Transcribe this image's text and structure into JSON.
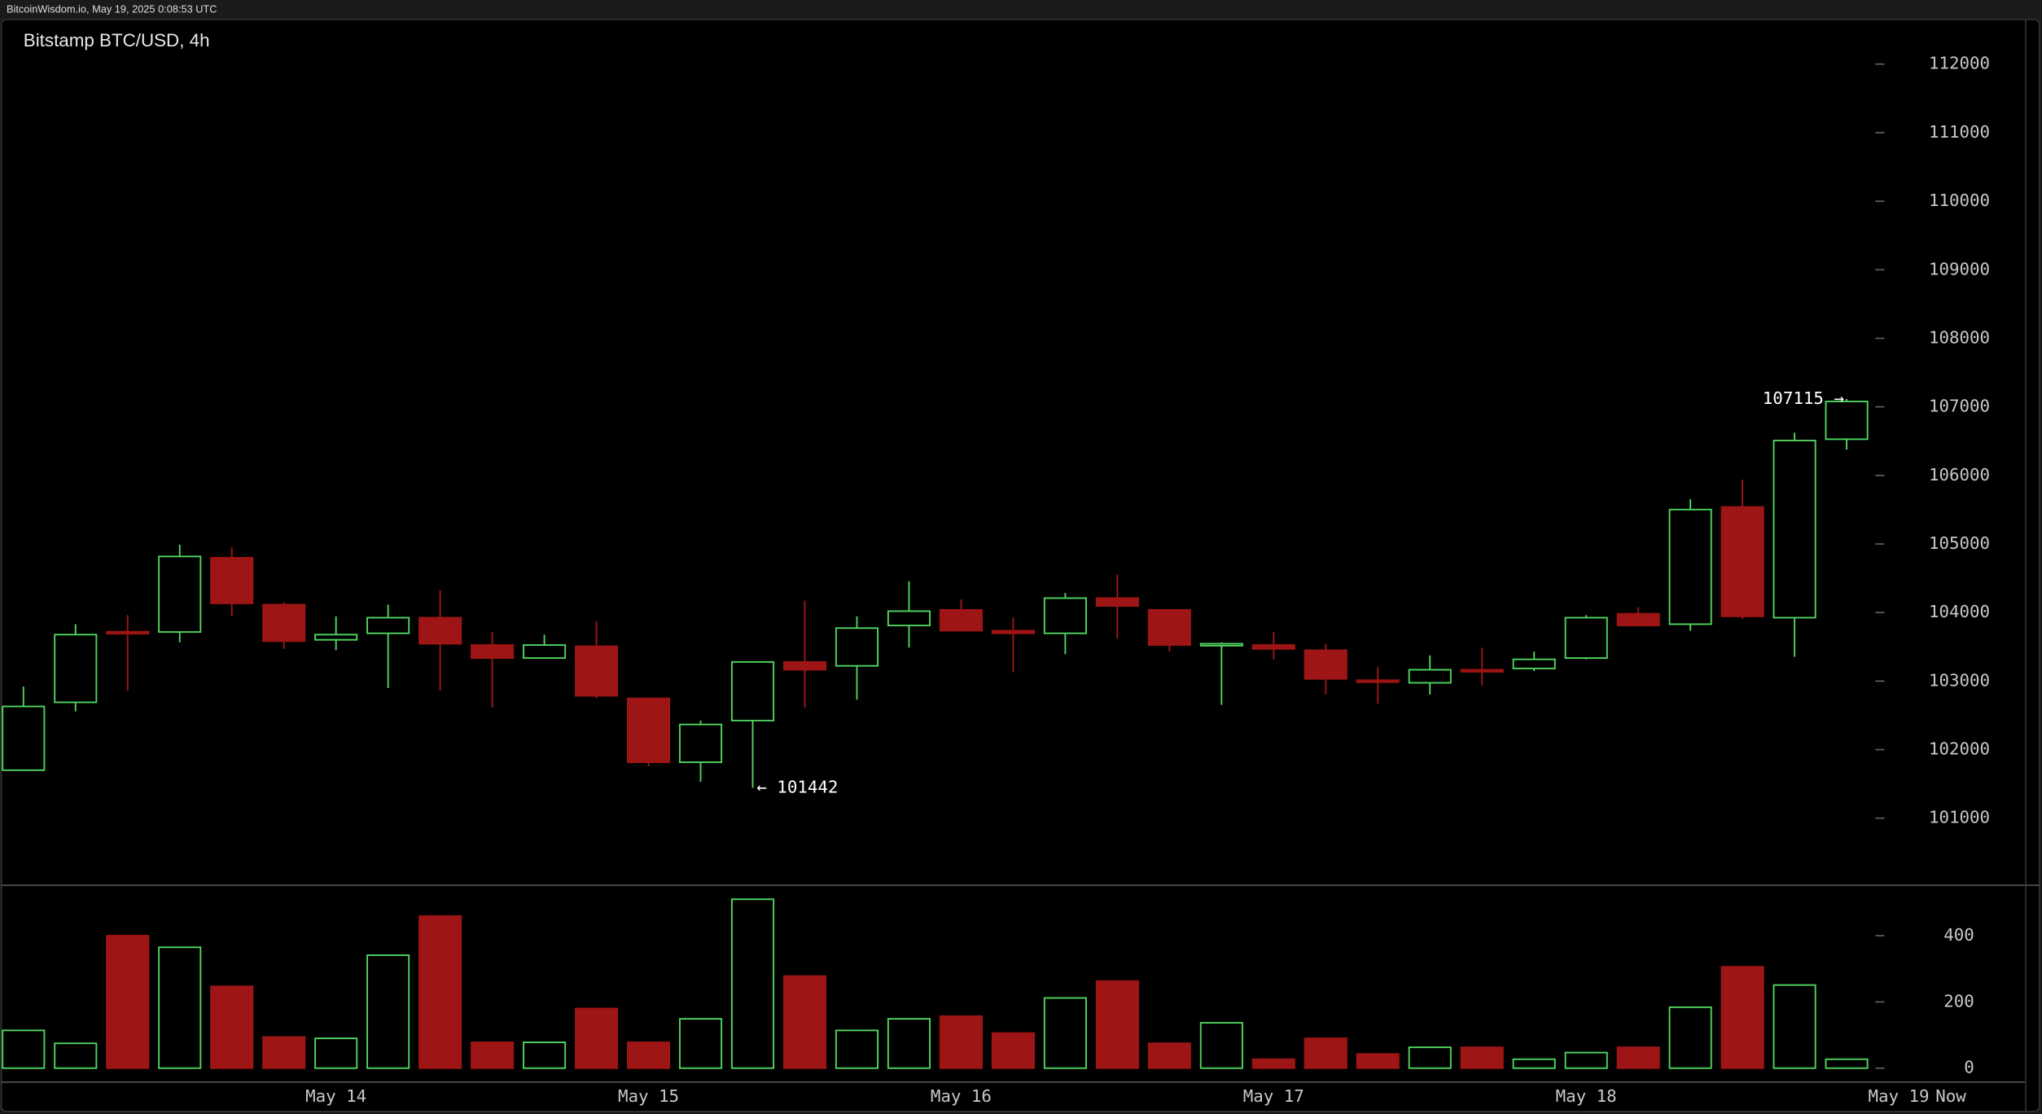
{
  "chart_data": {
    "type": "candlestick",
    "source": "BitcoinWisdom.io, May 19, 2025 0:08:53 UTC",
    "title": "Bitstamp BTC/USD, 4h",
    "categories": [
      null,
      null,
      null,
      null,
      null,
      null,
      "May 14",
      null,
      null,
      null,
      null,
      null,
      "May 15",
      null,
      null,
      null,
      null,
      null,
      "May 16",
      null,
      null,
      null,
      null,
      null,
      "May 17",
      null,
      null,
      null,
      null,
      null,
      "May 18",
      null,
      null,
      null,
      null,
      null,
      "May 19",
      "Now"
    ],
    "open": [
      101700,
      102690,
      103720,
      103716,
      104799,
      104115,
      103602,
      103697,
      103925,
      103526,
      103336,
      103507,
      102747,
      101816,
      102424,
      103279,
      103222,
      103811,
      104039,
      103735,
      103697,
      104210,
      104039,
      103526,
      103526,
      103450,
      103013,
      102975,
      103165,
      103184,
      103336,
      103982,
      103830,
      105540,
      103925,
      106528,
      null,
      null
    ],
    "high": [
      102920,
      103830,
      103963,
      104989,
      104951,
      104150,
      103944,
      104115,
      104324,
      103716,
      103678,
      103868,
      102747,
      102424,
      103279,
      104172,
      103944,
      104457,
      104191,
      103925,
      104286,
      104552,
      104039,
      103564,
      103716,
      103545,
      103203,
      103374,
      103488,
      103431,
      103963,
      104077,
      105654,
      105939,
      106623,
      107115,
      null,
      null
    ],
    "low": [
      101700,
      102557,
      102861,
      103564,
      103944,
      103469,
      103450,
      102899,
      102861,
      102614,
      103336,
      102747,
      101759,
      101531,
      101442,
      102614,
      102728,
      103488,
      103735,
      103127,
      103393,
      103621,
      103431,
      102652,
      103317,
      102804,
      102671,
      102804,
      102937,
      103146,
      103317,
      103811,
      103735,
      103906,
      103355,
      106376,
      null,
      null
    ],
    "close": [
      102630,
      103678,
      103700,
      104818,
      104134,
      103583,
      103678,
      103925,
      103545,
      103336,
      103526,
      102785,
      101816,
      102367,
      103279,
      103165,
      103773,
      104020,
      103735,
      103697,
      104210,
      104096,
      103526,
      103545,
      103469,
      103032,
      102994,
      103165,
      103146,
      103317,
      103925,
      103811,
      105502,
      103944,
      106509,
      107079,
      null,
      null
    ],
    "volume": [
      114,
      75,
      400,
      365,
      247,
      94,
      90,
      341,
      459,
      78,
      78,
      180,
      78,
      149,
      510,
      278,
      114,
      149,
      157,
      106,
      212,
      263,
      75,
      137,
      27,
      90,
      43,
      63,
      63,
      27,
      47,
      63,
      184,
      306,
      251,
      27,
      null,
      null
    ],
    "up_color": "#4fd35f",
    "down_color": "#9e1515",
    "ylim": [
      100030,
      112650
    ],
    "yticks": [
      101000,
      102000,
      103000,
      104000,
      105000,
      106000,
      107000,
      108000,
      109000,
      110000,
      111000,
      112000
    ],
    "volume_ylim": [
      -40,
      550
    ],
    "volume_yticks": [
      0,
      200,
      400
    ],
    "annotations": [
      {
        "label": "← 101442",
        "value": 101442
      },
      {
        "label": "107115 →",
        "value": 107115
      }
    ]
  }
}
